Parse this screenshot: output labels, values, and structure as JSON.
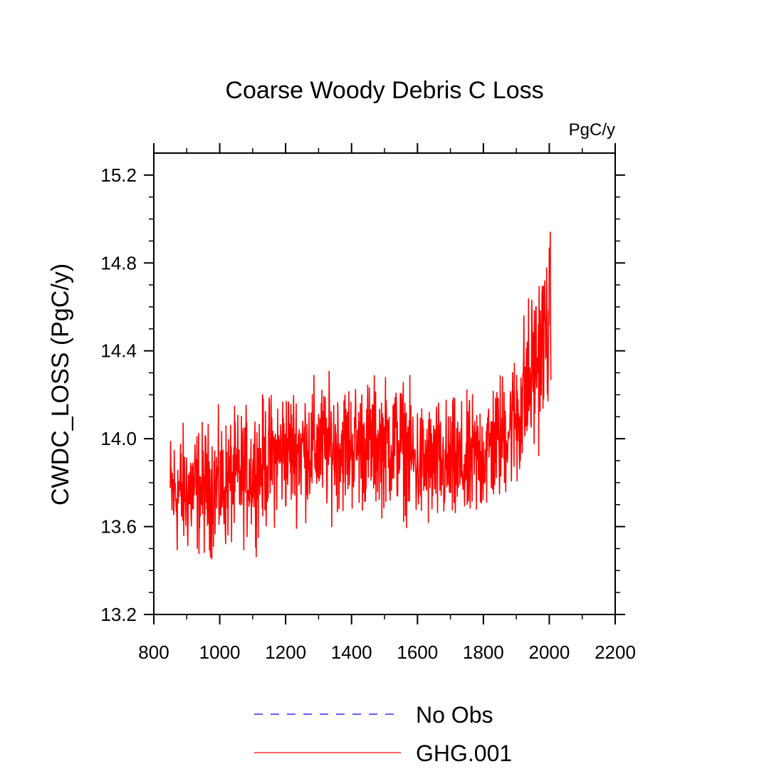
{
  "chart_data": {
    "type": "line",
    "title": "Coarse Woody Debris C Loss",
    "units_label": "PgC/y",
    "xlabel": "",
    "ylabel": "CWDC_LOSS  (PgC/y)",
    "xlim": [
      800,
      2200
    ],
    "ylim": [
      13.2,
      15.3
    ],
    "x_ticks": [
      800,
      1000,
      1200,
      1400,
      1600,
      1800,
      2000,
      2200
    ],
    "x_tick_labels": [
      "800",
      "1000",
      "1200",
      "1400",
      "1600",
      "1800",
      "2000",
      "2200"
    ],
    "y_ticks": [
      13.2,
      13.6,
      14.0,
      14.4,
      14.8,
      15.2
    ],
    "y_tick_labels": [
      "13.2",
      "13.6",
      "14.0",
      "14.4",
      "14.8",
      "15.2"
    ],
    "series": [
      {
        "name": "GHG.001",
        "color": "#ff0000",
        "style": "solid",
        "x_start": 850,
        "x_end": 2005,
        "baseline": [
          [
            850,
            13.75
          ],
          [
            1000,
            13.78
          ],
          [
            1100,
            13.85
          ],
          [
            1200,
            13.95
          ],
          [
            1400,
            13.97
          ],
          [
            1550,
            13.98
          ],
          [
            1600,
            13.88
          ],
          [
            1750,
            13.87
          ],
          [
            1850,
            14.0
          ],
          [
            1900,
            14.1
          ],
          [
            1950,
            14.3
          ],
          [
            2005,
            14.55
          ]
        ],
        "amplitude": 0.2,
        "values_note": "Annual values fluctuate about the baseline"
      },
      {
        "name": "No Obs",
        "color": "#0000ff",
        "style": "dashed",
        "values": []
      }
    ],
    "legend": [
      {
        "label": "No Obs",
        "color": "#0000ff",
        "style": "dashed"
      },
      {
        "label": "GHG.001",
        "color": "#ff0000",
        "style": "solid"
      }
    ],
    "legend_position": "bottom-center"
  }
}
